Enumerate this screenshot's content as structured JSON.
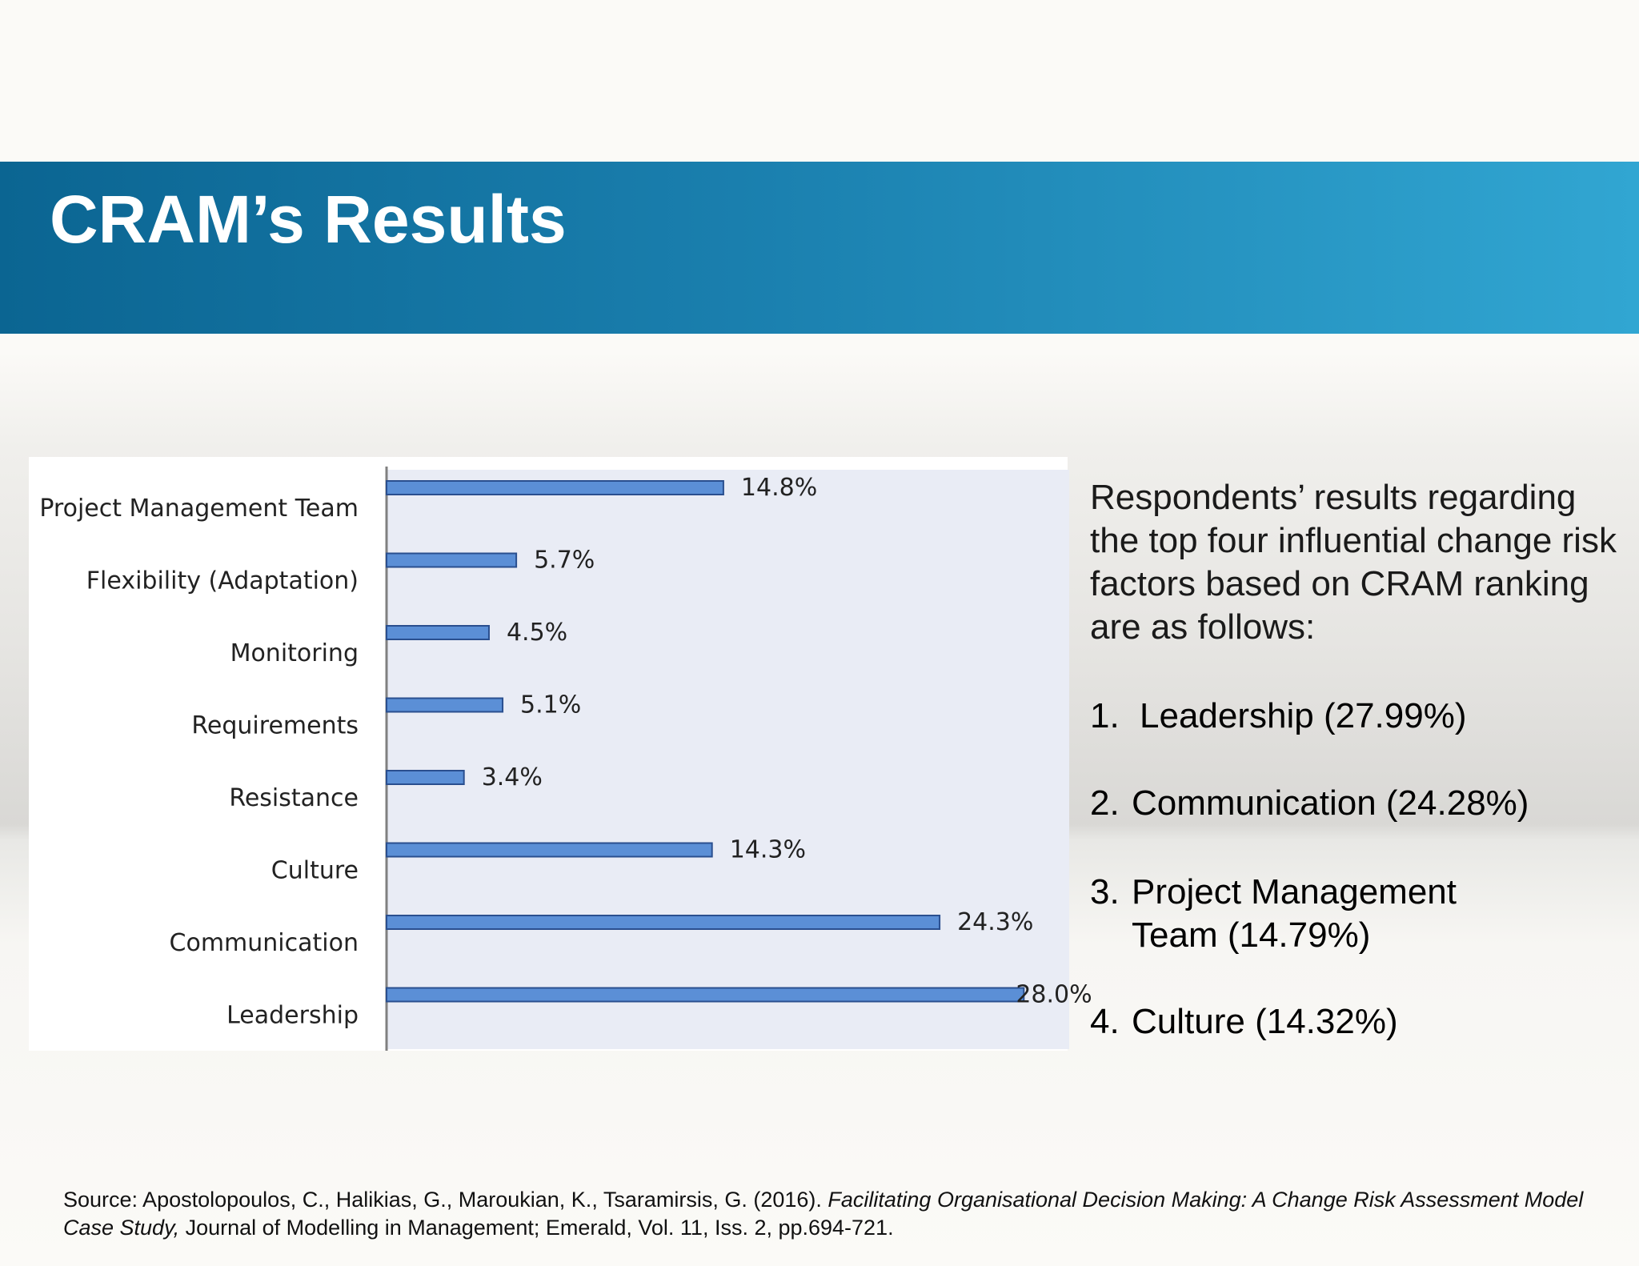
{
  "slide": {
    "title": "CRAM’s Results"
  },
  "side_panel": {
    "intro": "Respondents’ results regarding the top four influential change risk factors based on CRAM ranking are as follows:",
    "ranks": [
      {
        "num": "1.",
        "label": "Leadership (27.99%)"
      },
      {
        "num": "2.",
        "label": "Communication (24.28%)"
      },
      {
        "num": "3.",
        "label": "Project Management Team (14.79%)"
      },
      {
        "num": "4.",
        "label": "Culture (14.32%)"
      }
    ]
  },
  "source": {
    "prefix": "Source: Apostolopoulos, C., Halikias, G., Maroukian, K., Tsaramirsis, G. (2016). ",
    "title_italic": "Facilitating Organisational Decision Making: A Change Risk Assessment Model Case Study,",
    "suffix": " Journal of Modelling in Management; Emerald, Vol. 11, Iss. 2, pp.694-721."
  },
  "chart_data": {
    "type": "bar",
    "orientation": "horizontal",
    "categories": [
      "Project Management Team",
      "Flexibility (Adaptation)",
      "Monitoring",
      "Requirements",
      "Resistance",
      "Culture",
      "Communication",
      "Leadership"
    ],
    "values": [
      14.8,
      5.7,
      4.5,
      5.1,
      3.4,
      14.3,
      24.3,
      28.0
    ],
    "value_labels": [
      "14.8%",
      "5.7%",
      "4.5%",
      "5.1%",
      "3.4%",
      "14.3%",
      "24.3%",
      "28.0%"
    ],
    "xlim": [
      0,
      30
    ],
    "grid": false,
    "legend": "none",
    "colors": {
      "bar_fill": "#5b8fd6",
      "bar_stroke": "#2a4f8f",
      "plot_bg": "#e9ecf5",
      "axis": "#808080"
    }
  }
}
